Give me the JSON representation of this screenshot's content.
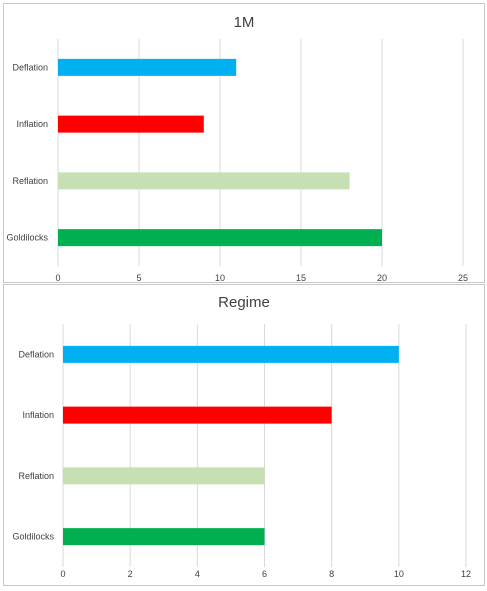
{
  "chart_data": [
    {
      "type": "bar",
      "orientation": "horizontal",
      "title": "1M",
      "categories": [
        "Deflation",
        "Inflation",
        "Reflation",
        "Goldilocks"
      ],
      "values": [
        11,
        9,
        18,
        20
      ],
      "bar_colors": [
        "#00b0f0",
        "#ff0000",
        "#c6e0b4",
        "#00b050"
      ],
      "xlim": [
        0,
        25
      ],
      "xticks": [
        0,
        5,
        10,
        15,
        20,
        25
      ],
      "xlabel": "",
      "ylabel": "",
      "grid": "vertical",
      "legend": "none"
    },
    {
      "type": "bar",
      "orientation": "horizontal",
      "title": "Regime",
      "categories": [
        "Deflation",
        "Inflation",
        "Reflation",
        "Goldilocks"
      ],
      "values": [
        10,
        8,
        6,
        6
      ],
      "bar_colors": [
        "#00b0f0",
        "#ff0000",
        "#c6e0b4",
        "#00b050"
      ],
      "xlim": [
        0,
        12
      ],
      "xticks": [
        0,
        2,
        4,
        6,
        8,
        10,
        12
      ],
      "xlabel": "",
      "ylabel": "",
      "grid": "vertical",
      "legend": "none"
    }
  ]
}
